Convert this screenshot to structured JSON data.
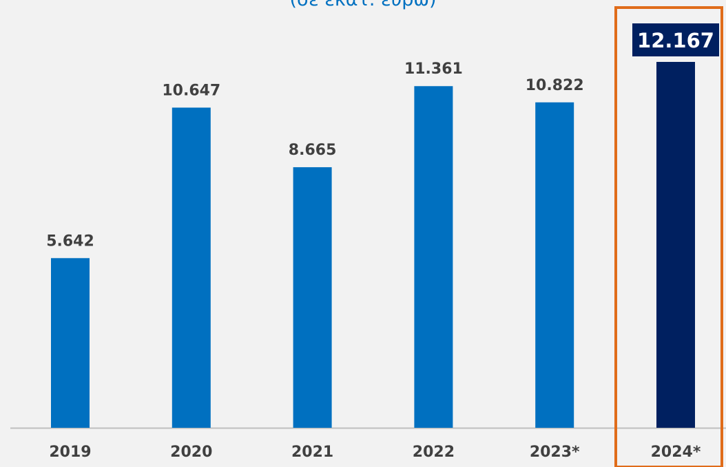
{
  "chart_data": {
    "type": "bar",
    "subtitle": "(σε εκατ. ευρώ)",
    "categories": [
      "2019",
      "2020",
      "2021",
      "2022",
      "2023*",
      "2024*"
    ],
    "values": [
      5642,
      10647,
      8665,
      11361,
      10822,
      12167
    ],
    "value_labels": [
      "5.642",
      "10.647",
      "8.665",
      "11.361",
      "10.822",
      "12.167"
    ],
    "highlight_index": 5,
    "xlabel": "",
    "ylabel": "",
    "ylim": [
      0,
      12167
    ],
    "grid": false,
    "colors": {
      "bar": "#0070c0",
      "highlight_bar": "#002060",
      "highlight_label_bg": "#002060",
      "highlight_label_text": "#ffffff",
      "highlight_frame": "#e06c1a",
      "label_text": "#404040",
      "axis_line": "#bfbfbf"
    }
  }
}
